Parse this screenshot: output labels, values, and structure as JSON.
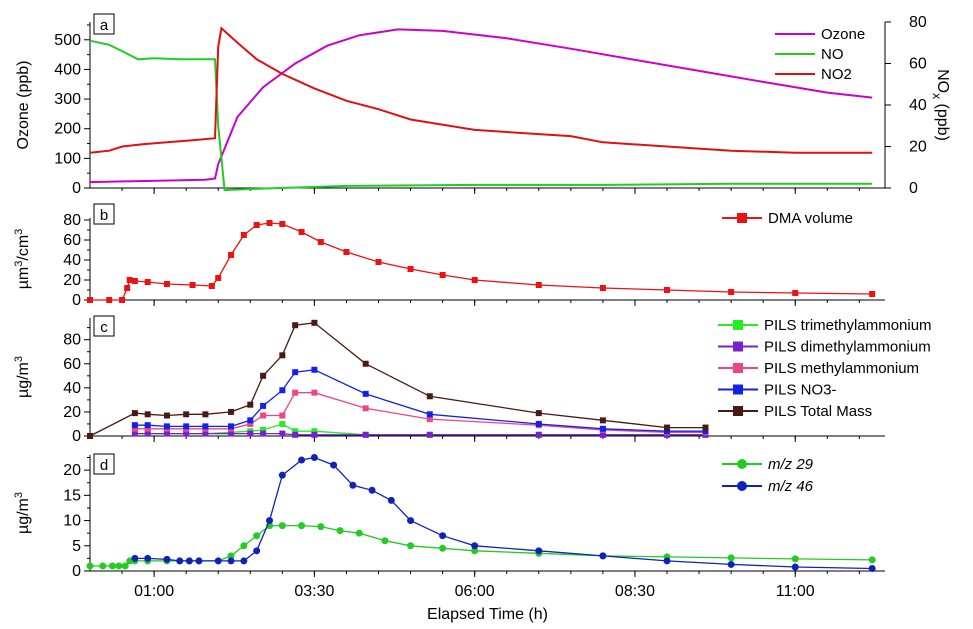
{
  "chart_data": [
    {
      "panel": "a",
      "type": "line",
      "xlabel": "",
      "ylabel": "Ozone (ppb)",
      "y2label": "NOx (ppb)",
      "y2label_main": "NO",
      "y2label_sub": "x",
      "y2label_unit": " (ppb)",
      "ylim": [
        0,
        560
      ],
      "y2lim": [
        0,
        80
      ],
      "yticks": [
        0,
        100,
        200,
        300,
        400,
        500
      ],
      "y2ticks": [
        0,
        20,
        40,
        60,
        80
      ],
      "legend_position": "top-right",
      "series": [
        {
          "name": "Ozone",
          "axis": "left",
          "color": "#cc00cc",
          "x": [
            0,
            1.8,
            1.95,
            2.0,
            2.3,
            2.7,
            3.2,
            3.7,
            4.2,
            4.8,
            5.5,
            6.5,
            7.5,
            8.5,
            9.5,
            10.5,
            11.5,
            12.2
          ],
          "y": [
            20,
            28,
            32,
            80,
            240,
            340,
            420,
            480,
            515,
            535,
            530,
            505,
            470,
            432,
            395,
            358,
            322,
            305
          ]
        },
        {
          "name": "NO",
          "axis": "right",
          "color": "#22cc22",
          "x": [
            0,
            0.3,
            0.5,
            0.75,
            1.0,
            1.4,
            1.95,
            2.0,
            2.1,
            2.5,
            4.0,
            6.0,
            8.0,
            10.0,
            12.2
          ],
          "y": [
            71,
            69,
            66,
            62,
            62.5,
            62,
            62,
            30,
            -1,
            -0.5,
            1,
            1.5,
            1.5,
            2,
            2
          ]
        },
        {
          "name": "NO2",
          "axis": "right",
          "color": "#dd1111",
          "x": [
            0,
            0.3,
            0.5,
            0.8,
            1.2,
            1.6,
            1.95,
            2.0,
            2.05,
            2.3,
            2.6,
            3.0,
            3.5,
            4.0,
            4.5,
            5.0,
            6.0,
            7.0,
            7.5,
            8.0,
            9.0,
            10.0,
            11.0,
            12.2
          ],
          "y": [
            17,
            18,
            20,
            21,
            22,
            23,
            24,
            68,
            77,
            70,
            62,
            55,
            48,
            42,
            38,
            33,
            28,
            26,
            25,
            22,
            20,
            18,
            17,
            17
          ]
        }
      ]
    },
    {
      "panel": "b",
      "type": "scatter",
      "ylabel": "µm3/cm3",
      "ylabel_main": "µm",
      "ylabel_sup1": "3",
      "ylabel_mid": "/cm",
      "ylabel_sup2": "3",
      "ylim": [
        0,
        82
      ],
      "yticks": [
        0,
        20,
        40,
        60,
        80
      ],
      "legend_position": "top-right",
      "series": [
        {
          "name": "DMA volume",
          "color": "#ee1111",
          "marker": "square",
          "x": [
            0,
            0.3,
            0.5,
            0.58,
            0.62,
            0.7,
            0.9,
            1.2,
            1.6,
            1.9,
            2.0,
            2.2,
            2.4,
            2.6,
            2.8,
            3.0,
            3.3,
            3.6,
            4.0,
            4.5,
            5.0,
            5.5,
            6.0,
            7.0,
            8.0,
            9.0,
            10.0,
            11.0,
            12.2
          ],
          "y": [
            0,
            0,
            0,
            12,
            20,
            19,
            18,
            16,
            15,
            14,
            22,
            45,
            65,
            75,
            77,
            76,
            68,
            58,
            48,
            38,
            31,
            25,
            20,
            15,
            12,
            10,
            8,
            7,
            6
          ]
        }
      ]
    },
    {
      "panel": "c",
      "type": "line",
      "ylabel": "µg/m3",
      "ylabel_main": "µg/m",
      "ylabel_sup": "3",
      "ylim": [
        0,
        98
      ],
      "yticks": [
        0,
        20,
        40,
        60,
        80
      ],
      "legend_position": "top-right",
      "series": [
        {
          "name": "PILS trimethylammonium",
          "color": "#22ee22",
          "marker": "square",
          "x": [
            0.7,
            0.9,
            1.2,
            1.5,
            1.8,
            2.2,
            2.5,
            2.7,
            3.0,
            3.2,
            3.5,
            4.3,
            5.3,
            7.0,
            8.0,
            9.0,
            9.6
          ],
          "y": [
            2,
            2,
            2,
            2,
            2,
            3,
            4,
            5,
            10,
            4,
            4,
            1,
            1,
            1,
            1,
            1,
            1
          ]
        },
        {
          "name": "PILS dimethylammonium",
          "color": "#7722cc",
          "marker": "square",
          "x": [
            0.7,
            0.9,
            1.2,
            1.5,
            1.8,
            2.2,
            2.5,
            2.7,
            3.0,
            3.2,
            3.5,
            4.3,
            5.3,
            7.0,
            8.0,
            9.0,
            9.6
          ],
          "y": [
            2,
            2,
            2,
            2,
            2,
            2,
            2,
            2,
            2,
            1,
            1,
            1,
            1,
            1,
            1,
            1,
            1
          ]
        },
        {
          "name": "PILS methylammonium",
          "color": "#ee4488",
          "marker": "square",
          "x": [
            0.7,
            0.9,
            1.2,
            1.5,
            1.8,
            2.2,
            2.5,
            2.7,
            3.0,
            3.2,
            3.5,
            4.3,
            5.3,
            7.0,
            8.0,
            9.0,
            9.6
          ],
          "y": [
            6,
            6,
            6,
            6,
            6,
            6,
            10,
            17,
            17,
            36,
            36,
            23,
            14,
            9,
            5,
            3,
            3
          ]
        },
        {
          "name": "PILS NO3-",
          "color": "#1122ee",
          "marker": "square",
          "x": [
            0.7,
            0.9,
            1.2,
            1.5,
            1.8,
            2.2,
            2.5,
            2.7,
            3.0,
            3.2,
            3.5,
            4.3,
            5.3,
            7.0,
            8.0,
            9.0,
            9.6
          ],
          "y": [
            9,
            9,
            8,
            8,
            8,
            8,
            13,
            25,
            38,
            53,
            55,
            35,
            18,
            10,
            6,
            4,
            4
          ]
        },
        {
          "name": "PILS Total Mass",
          "color": "#4a1a10",
          "marker": "square",
          "x": [
            0,
            0.7,
            0.9,
            1.2,
            1.5,
            1.8,
            2.2,
            2.5,
            2.7,
            3.0,
            3.2,
            3.5,
            4.3,
            5.3,
            7.0,
            8.0,
            9.0,
            9.6
          ],
          "y": [
            0,
            19,
            18,
            17,
            18,
            18,
            20,
            26,
            50,
            67,
            92,
            94,
            60,
            33,
            19,
            13,
            7,
            7
          ]
        }
      ]
    },
    {
      "panel": "d",
      "type": "scatter",
      "xlabel": "Elapsed Time (h)",
      "ylabel": "µg/m3",
      "ylabel_main": "µg/m",
      "ylabel_sup": "3",
      "ylim": [
        0,
        23
      ],
      "yticks": [
        0,
        5,
        10,
        15,
        20
      ],
      "xlim": [
        0,
        12.4
      ],
      "xticks": [
        1.0,
        3.5,
        6.0,
        8.5,
        11.0
      ],
      "xticklabels": [
        "01:00",
        "03:30",
        "06:00",
        "08:30",
        "11:00"
      ],
      "legend_position": "top-right",
      "series": [
        {
          "name": "m/z 29",
          "color": "#22cc22",
          "marker": "circle",
          "x": [
            0,
            0.2,
            0.35,
            0.45,
            0.55,
            0.62,
            0.7,
            0.9,
            1.2,
            1.4,
            1.55,
            1.7,
            2.0,
            2.2,
            2.4,
            2.6,
            2.8,
            3.0,
            3.3,
            3.6,
            3.9,
            4.2,
            4.6,
            5.0,
            5.5,
            6.0,
            7.0,
            8.0,
            9.0,
            10.0,
            11.0,
            12.2
          ],
          "y": [
            1,
            1,
            1,
            1,
            1,
            2,
            2,
            2,
            2,
            2,
            2,
            2,
            2,
            3,
            5,
            7,
            9,
            9,
            9,
            8.8,
            8,
            7.5,
            6,
            5,
            4.5,
            4,
            3.5,
            3,
            2.8,
            2.6,
            2.4,
            2.2
          ]
        },
        {
          "name": "m/z 46",
          "color": "#1122bb",
          "marker": "circle",
          "x": [
            0.7,
            0.9,
            1.2,
            1.4,
            1.55,
            1.7,
            2.0,
            2.2,
            2.4,
            2.6,
            2.8,
            3.0,
            3.3,
            3.5,
            3.8,
            4.1,
            4.4,
            4.7,
            5.0,
            5.5,
            6.0,
            7.0,
            8.0,
            9.0,
            10.0,
            11.0,
            12.2
          ],
          "y": [
            2.5,
            2.5,
            2.3,
            2,
            2,
            2,
            2,
            2,
            2,
            4,
            10,
            19,
            22,
            22.5,
            21,
            17,
            16,
            14,
            10,
            7,
            5,
            4,
            3,
            2,
            1.3,
            0.8,
            0.5
          ]
        }
      ]
    }
  ]
}
